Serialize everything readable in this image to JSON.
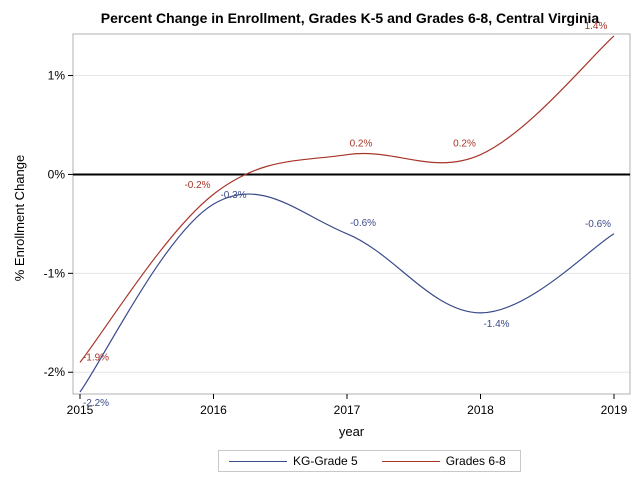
{
  "chart_data": {
    "type": "line",
    "title": "Percent Change in Enrollment, Grades K-5 and Grades 6-8, Central Virginia",
    "xlabel": "year",
    "ylabel": "% Enrollment Change",
    "x": [
      2015,
      2016,
      2017,
      2018,
      2019
    ],
    "x_ticks": [
      "2015",
      "2016",
      "2017",
      "2018",
      "2019"
    ],
    "y_ticks": [
      {
        "value": -2,
        "label": "-2%"
      },
      {
        "value": -1,
        "label": "-1%"
      },
      {
        "value": 0,
        "label": "0%"
      },
      {
        "value": 1,
        "label": "1%"
      }
    ],
    "xlim": [
      2015,
      2019
    ],
    "ylim": [
      -2.22,
      1.42
    ],
    "reference_line": 0,
    "grid": "horizontal",
    "legend_position": "bottom",
    "series": [
      {
        "name": "KG-Grade 5",
        "color": "#3a4a8a",
        "values": [
          -2.2,
          -0.3,
          -0.6,
          -1.4,
          -0.6
        ],
        "labels": [
          "-2.2%",
          "-0.3%",
          "-0.6%",
          "-1.4%",
          "-0.6%"
        ]
      },
      {
        "name": "Grades 6-8",
        "color": "#a8352a",
        "values": [
          -1.9,
          -0.2,
          0.2,
          0.2,
          1.4
        ],
        "labels": [
          "-1.9%",
          "-0.2%",
          "0.2%",
          "0.2%",
          "1.4%"
        ]
      }
    ]
  }
}
